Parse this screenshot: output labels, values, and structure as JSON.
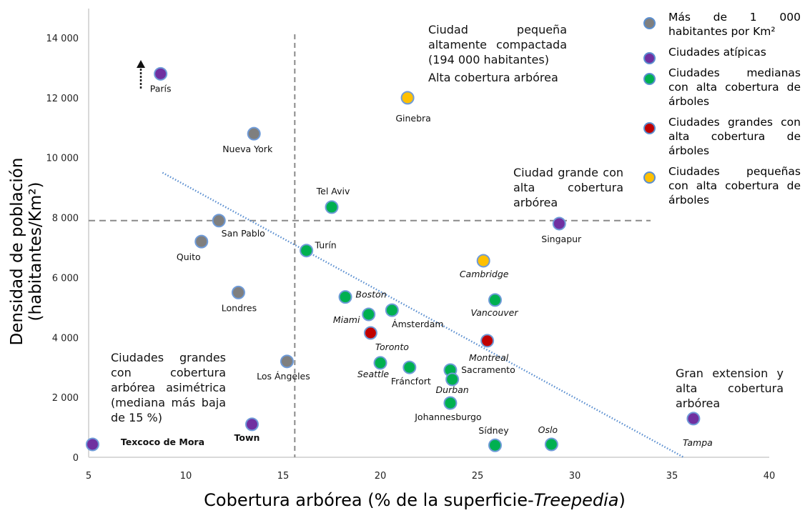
{
  "chart_data": {
    "type": "scatter",
    "xlabel_main": "Cobertura arbórea (% de la superficie-",
    "xlabel_italic": "Treepedia",
    "xlabel_end": ")",
    "ylabel": "Densidad de población (habitantes/Km²)",
    "xlim": [
      5,
      40
    ],
    "ylim": [
      0,
      14000
    ],
    "x_ticks": [
      5,
      10,
      15,
      20,
      25,
      30,
      35,
      40
    ],
    "x_tick_labels": [
      "5",
      "10",
      "15",
      "20",
      "25",
      "30",
      "35",
      "40"
    ],
    "y_ticks": [
      0,
      2000,
      4000,
      6000,
      8000,
      10000,
      12000,
      14000
    ],
    "y_tick_labels": [
      "0",
      "2 000",
      "4 000",
      "6 000",
      "8 000",
      "10 000",
      "12 000",
      "14 000"
    ],
    "reference_lines": {
      "vertical_x": 15.6,
      "horizontal_y": 7900
    },
    "trend_line": {
      "x": [
        8.8,
        35.6
      ],
      "y": [
        9500,
        0
      ]
    },
    "category_colors": {
      "dense": "#7f7f7f",
      "atypical": "#7030a0",
      "medium": "#00b050",
      "large": "#c00000",
      "small": "#ffc000"
    },
    "points": [
      {
        "name": "París",
        "x": 8.7,
        "y": 12800,
        "category": "atypical",
        "style": "normal"
      },
      {
        "name": "Ginebra",
        "x": 21.4,
        "y": 12000,
        "category": "small",
        "style": "normal"
      },
      {
        "name": "Nueva York",
        "x": 13.5,
        "y": 10800,
        "category": "dense",
        "style": "normal"
      },
      {
        "name": "Tel Aviv",
        "x": 17.5,
        "y": 8350,
        "category": "medium",
        "style": "normal"
      },
      {
        "name": "San Pablo",
        "x": 11.7,
        "y": 7900,
        "category": "dense",
        "style": "normal"
      },
      {
        "name": "Quito",
        "x": 10.8,
        "y": 7200,
        "category": "dense",
        "style": "normal"
      },
      {
        "name": "Turín",
        "x": 16.2,
        "y": 6900,
        "category": "medium",
        "style": "normal"
      },
      {
        "name": "Singapur",
        "x": 29.2,
        "y": 7800,
        "category": "atypical",
        "style": "normal"
      },
      {
        "name": "Cambridge",
        "x": 25.3,
        "y": 6560,
        "category": "small",
        "style": "italic"
      },
      {
        "name": "Londres",
        "x": 12.7,
        "y": 5500,
        "category": "dense",
        "style": "normal"
      },
      {
        "name": "Boston",
        "x": 18.2,
        "y": 5350,
        "category": "medium",
        "style": "italic"
      },
      {
        "name": "Vancouver",
        "x": 25.9,
        "y": 5250,
        "category": "medium",
        "style": "italic"
      },
      {
        "name": "Miami",
        "x": 19.4,
        "y": 4770,
        "category": "medium",
        "style": "italic"
      },
      {
        "name": "Ámsterdam",
        "x": 20.6,
        "y": 4910,
        "category": "medium",
        "style": "normal"
      },
      {
        "name": "Toronto",
        "x": 19.5,
        "y": 4150,
        "category": "large",
        "style": "italic"
      },
      {
        "name": "Montreal",
        "x": 25.5,
        "y": 3890,
        "category": "large",
        "style": "italic"
      },
      {
        "name": "Los Ángeles",
        "x": 15.2,
        "y": 3200,
        "category": "dense",
        "style": "normal"
      },
      {
        "name": "Seattle",
        "x": 20.0,
        "y": 3150,
        "category": "medium",
        "style": "italic"
      },
      {
        "name": "Fráncfort",
        "x": 21.5,
        "y": 3000,
        "category": "medium",
        "style": "normal"
      },
      {
        "name": "Sacramento",
        "x": 23.6,
        "y": 2910,
        "category": "medium",
        "style": "normal"
      },
      {
        "name": "Durban",
        "x": 23.7,
        "y": 2600,
        "category": "medium",
        "style": "italic"
      },
      {
        "name": "Johannesburgo",
        "x": 23.6,
        "y": 1810,
        "category": "medium",
        "style": "normal"
      },
      {
        "name": "Town",
        "x": 13.4,
        "y": 1100,
        "category": "atypical",
        "style": "faded"
      },
      {
        "name": "Tampa",
        "x": 36.1,
        "y": 1290,
        "category": "atypical",
        "style": "italic"
      },
      {
        "name": "Texcoco de Mora",
        "x": 5.2,
        "y": 430,
        "category": "atypical",
        "style": "bold"
      },
      {
        "name": "Sídney",
        "x": 25.9,
        "y": 400,
        "category": "medium",
        "style": "normal"
      },
      {
        "name": "Oslo",
        "x": 28.8,
        "y": 430,
        "category": "medium",
        "style": "italic"
      }
    ],
    "legend": [
      {
        "label": "Más de 1 000 habitantes por Km²",
        "category": "dense"
      },
      {
        "label": "Ciudades atípicas",
        "category": "atypical"
      },
      {
        "label": "Ciudades medianas con alta cobertura de árboles",
        "category": "medium"
      },
      {
        "label": "Ciudades grandes con alta cobertura de árboles",
        "category": "large"
      },
      {
        "label": "Ciudades pequeñas con alta cobertura de árboles",
        "category": "small"
      }
    ],
    "annotations": {
      "small_compact": "Ciudad pequeña altamente compactada (194 000 habitantes)",
      "small_compact_2": "Alta cobertura arbórea",
      "large_high": "Ciudad grande con alta cobertura arbórea",
      "large_asym": "Ciudades grandes con cobertura arbórea asimétrica (mediana más baja de 15 %)",
      "extension": "Gran extension y alta cobertura arbórea"
    }
  }
}
